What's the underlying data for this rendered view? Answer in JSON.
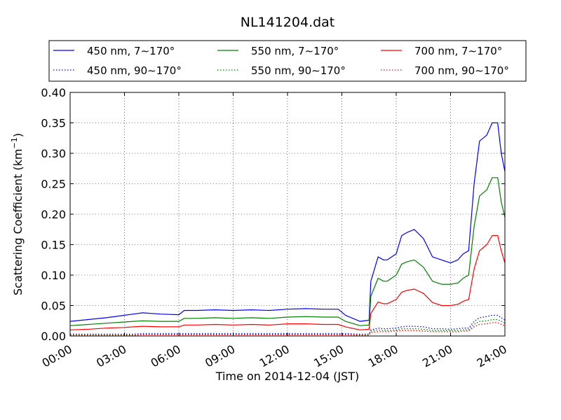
{
  "chart_data": {
    "type": "line",
    "title": "NL141204.dat",
    "xlabel": "Time on 2014-12-04 (JST)",
    "ylabel_main": "Scattering Coefficient (km",
    "ylabel_sup": "−1",
    "ylabel_close": ")",
    "x_unit": "hour",
    "xlim": [
      0,
      24
    ],
    "ylim": [
      0,
      0.4
    ],
    "x_ticks": [
      0,
      3,
      6,
      9,
      12,
      15,
      18,
      21,
      24
    ],
    "x_tick_labels": [
      "00:00",
      "03:00",
      "06:00",
      "09:00",
      "12:00",
      "15:00",
      "18:00",
      "21:00",
      "24:00"
    ],
    "y_ticks": [
      0,
      0.05,
      0.1,
      0.15,
      0.2,
      0.25,
      0.3,
      0.35,
      0.4
    ],
    "y_tick_labels": [
      "0.00",
      "0.05",
      "0.10",
      "0.15",
      "0.20",
      "0.25",
      "0.30",
      "0.35",
      "0.40"
    ],
    "grid": true,
    "legend_placement": "top, above plot, 3 columns",
    "x": [
      0,
      1,
      2,
      3,
      3.5,
      4,
      5,
      6,
      6.3,
      7,
      8,
      9,
      10,
      11,
      12,
      13,
      14,
      14.8,
      15.2,
      16,
      16.5,
      16.6,
      17,
      17.3,
      17.5,
      18,
      18.3,
      18.6,
      19,
      19.5,
      20,
      20.5,
      21,
      21.4,
      21.7,
      22,
      22.3,
      22.6,
      23,
      23.3,
      23.6,
      23.8,
      24
    ],
    "series": [
      {
        "name": "450 nm, 7∼170°",
        "color": "#0000ff",
        "style": "solid",
        "values": [
          0.024,
          0.027,
          0.03,
          0.034,
          0.036,
          0.038,
          0.036,
          0.035,
          0.042,
          0.042,
          0.043,
          0.042,
          0.043,
          0.042,
          0.044,
          0.045,
          0.044,
          0.044,
          0.034,
          0.024,
          0.026,
          0.09,
          0.13,
          0.125,
          0.125,
          0.135,
          0.165,
          0.17,
          0.175,
          0.16,
          0.13,
          0.125,
          0.12,
          0.125,
          0.135,
          0.14,
          0.25,
          0.32,
          0.33,
          0.35,
          0.35,
          0.3,
          0.27
        ]
      },
      {
        "name": "550 nm, 7∼170°",
        "color": "#008000",
        "style": "solid",
        "values": [
          0.017,
          0.019,
          0.021,
          0.023,
          0.024,
          0.025,
          0.024,
          0.024,
          0.029,
          0.029,
          0.03,
          0.029,
          0.03,
          0.029,
          0.031,
          0.032,
          0.031,
          0.031,
          0.024,
          0.017,
          0.018,
          0.065,
          0.095,
          0.09,
          0.09,
          0.1,
          0.118,
          0.122,
          0.125,
          0.113,
          0.09,
          0.085,
          0.085,
          0.087,
          0.095,
          0.1,
          0.18,
          0.23,
          0.24,
          0.26,
          0.26,
          0.22,
          0.195
        ]
      },
      {
        "name": "700 nm, 7∼170°",
        "color": "#ff0000",
        "style": "solid",
        "values": [
          0.01,
          0.011,
          0.013,
          0.014,
          0.015,
          0.016,
          0.015,
          0.015,
          0.018,
          0.018,
          0.019,
          0.018,
          0.019,
          0.018,
          0.02,
          0.02,
          0.019,
          0.019,
          0.015,
          0.01,
          0.011,
          0.037,
          0.056,
          0.053,
          0.053,
          0.06,
          0.072,
          0.075,
          0.077,
          0.07,
          0.055,
          0.05,
          0.05,
          0.052,
          0.057,
          0.06,
          0.11,
          0.14,
          0.15,
          0.165,
          0.165,
          0.14,
          0.12
        ]
      },
      {
        "name": "450 nm, 90∼170°",
        "color": "#0000ff",
        "style": "dotted",
        "values": [
          0.003,
          0.003,
          0.003,
          0.003,
          0.003,
          0.004,
          0.004,
          0.004,
          0.004,
          0.004,
          0.004,
          0.004,
          0.004,
          0.004,
          0.004,
          0.004,
          0.004,
          0.004,
          0.004,
          0.003,
          0.003,
          0.01,
          0.013,
          0.012,
          0.012,
          0.013,
          0.015,
          0.016,
          0.016,
          0.015,
          0.012,
          0.012,
          0.011,
          0.012,
          0.013,
          0.013,
          0.024,
          0.03,
          0.032,
          0.034,
          0.034,
          0.03,
          0.026
        ]
      },
      {
        "name": "550 nm, 90∼170°",
        "color": "#008000",
        "style": "dotted",
        "values": [
          0.002,
          0.002,
          0.002,
          0.002,
          0.002,
          0.003,
          0.003,
          0.003,
          0.003,
          0.003,
          0.003,
          0.003,
          0.003,
          0.003,
          0.003,
          0.003,
          0.003,
          0.003,
          0.003,
          0.002,
          0.002,
          0.008,
          0.01,
          0.009,
          0.009,
          0.01,
          0.012,
          0.012,
          0.012,
          0.011,
          0.009,
          0.009,
          0.009,
          0.009,
          0.01,
          0.01,
          0.019,
          0.024,
          0.025,
          0.027,
          0.027,
          0.024,
          0.021
        ]
      },
      {
        "name": "700 nm, 90∼170°",
        "color": "#ff0000",
        "style": "dotted",
        "values": [
          0.001,
          0.001,
          0.001,
          0.001,
          0.001,
          0.002,
          0.002,
          0.002,
          0.002,
          0.002,
          0.002,
          0.002,
          0.002,
          0.002,
          0.002,
          0.002,
          0.002,
          0.002,
          0.002,
          0.001,
          0.001,
          0.006,
          0.007,
          0.007,
          0.007,
          0.008,
          0.009,
          0.009,
          0.009,
          0.008,
          0.007,
          0.007,
          0.007,
          0.007,
          0.008,
          0.008,
          0.015,
          0.019,
          0.02,
          0.022,
          0.022,
          0.019,
          0.017
        ]
      }
    ]
  }
}
